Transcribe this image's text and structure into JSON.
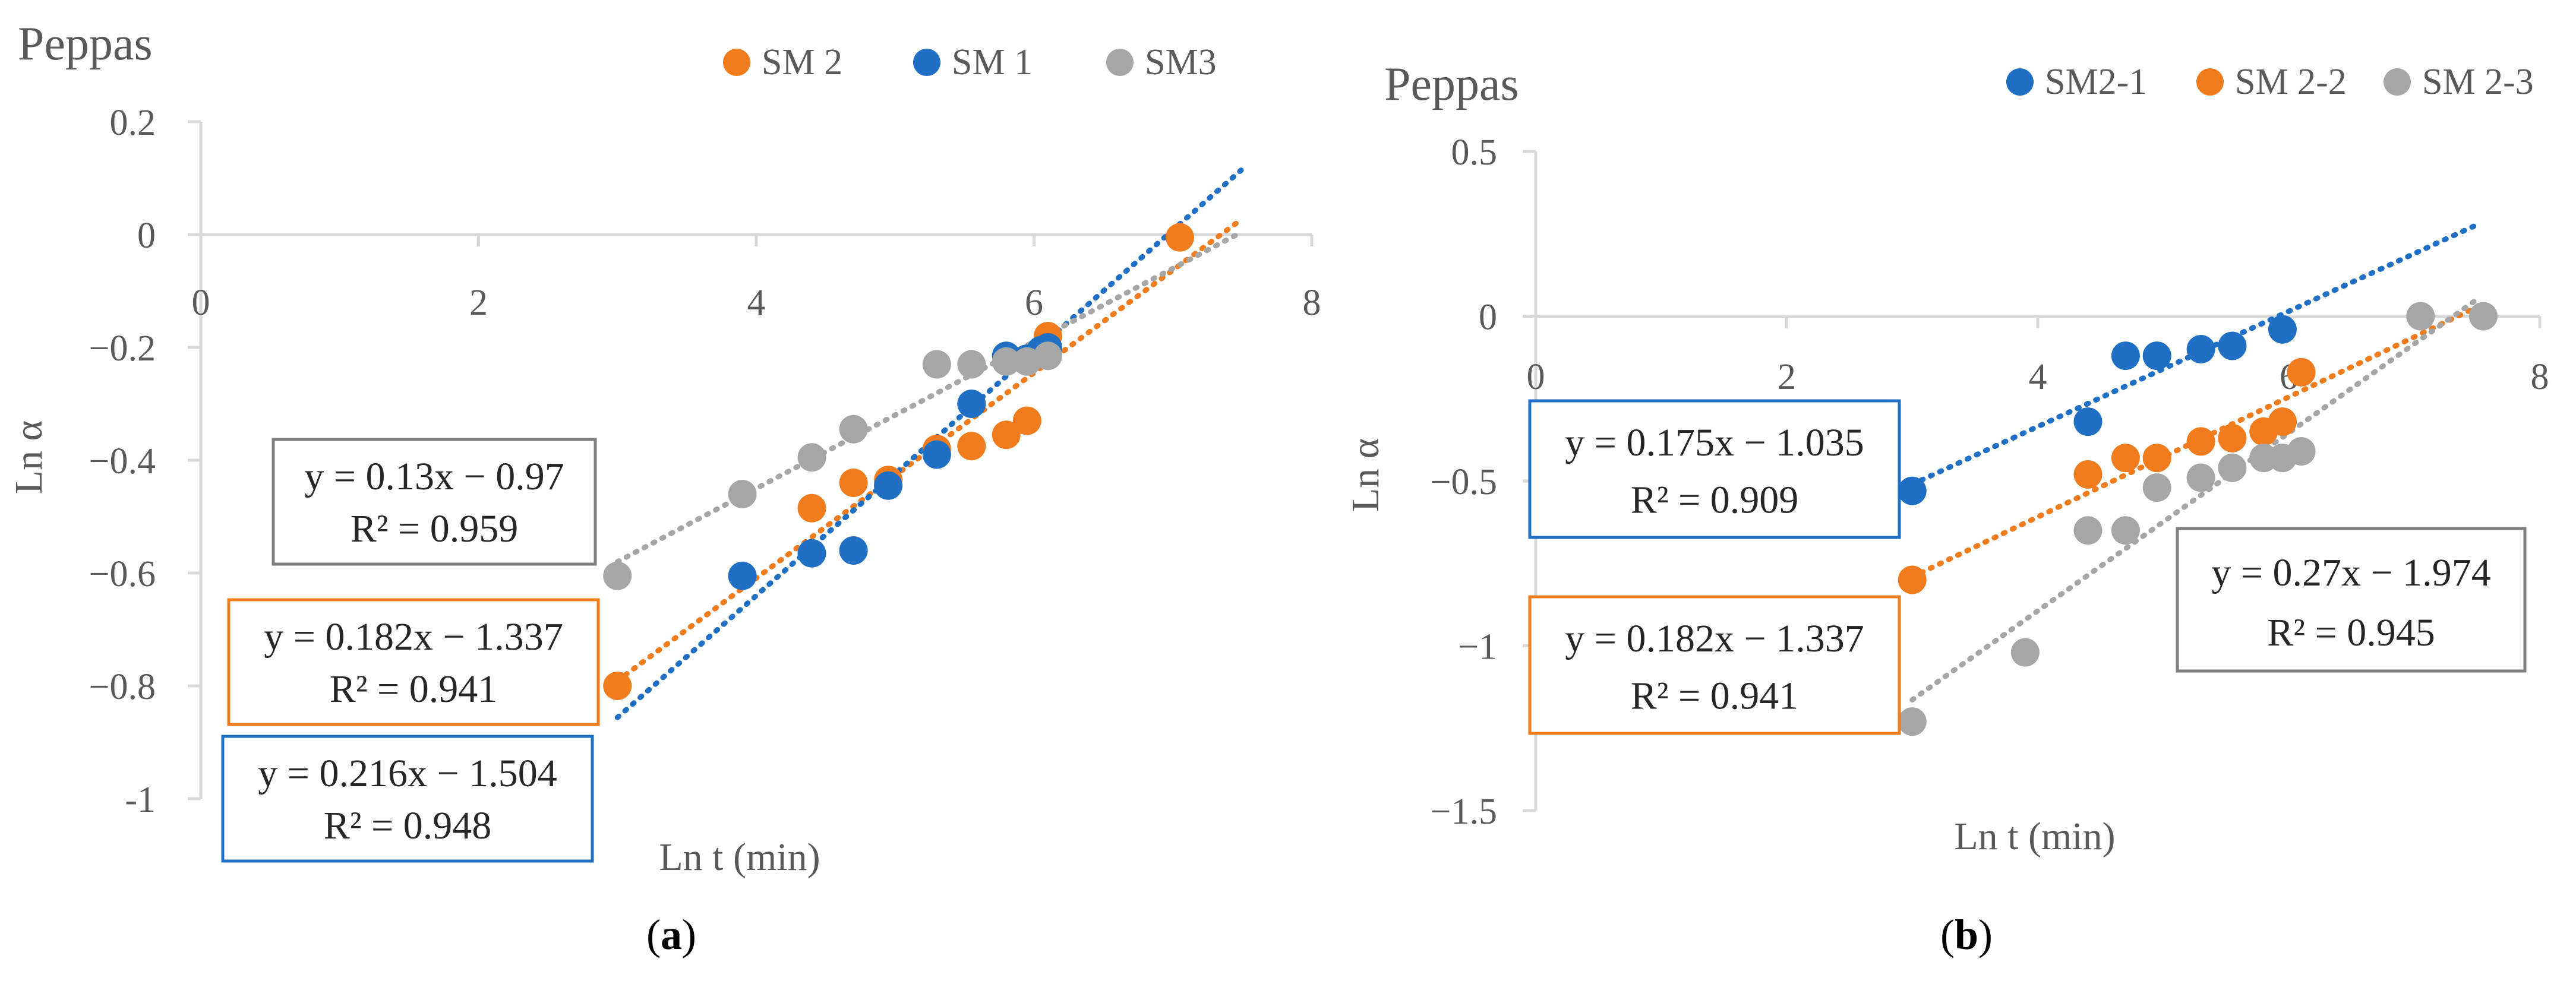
{
  "colors": {
    "blue": "#1f6fc5",
    "orange": "#f07c1e",
    "gray": "#a6a6a6",
    "axis": "#d9d9d9",
    "eqgray": "#7f7f7f"
  },
  "chart_data": [
    {
      "id": "a",
      "type": "scatter",
      "title": "Peppas",
      "caption": "(a)",
      "xlabel": "Ln t (min)",
      "ylabel": "Ln α",
      "xlim": [
        0,
        8
      ],
      "ylim": [
        -1,
        0.2
      ],
      "xticks": [
        0,
        2,
        4,
        6,
        8
      ],
      "xtick_labels": [
        "0",
        "2",
        "4",
        "6",
        "8"
      ],
      "yticks": [
        0.2,
        0,
        -0.2,
        -0.4,
        -0.6,
        -0.8,
        -1
      ],
      "ytick_labels": [
        "0.2",
        "0",
        "−0.2",
        "−0.4",
        "−0.6",
        "−0.8",
        "-1"
      ],
      "grid": false,
      "legend": "top",
      "series": [
        {
          "name": "SM 2",
          "color": "orange",
          "x": [
            3.0,
            4.4,
            4.7,
            4.95,
            5.3,
            5.55,
            5.8,
            5.95,
            6.1,
            7.05
          ],
          "y": [
            -0.8,
            -0.485,
            -0.44,
            -0.435,
            -0.38,
            -0.375,
            -0.355,
            -0.33,
            -0.18,
            -0.005
          ],
          "trendline": {
            "slope": 0.182,
            "intercept": -1.337,
            "x_range": [
              3.0,
              7.5
            ]
          },
          "equation": "y = 0.182x − 1.337",
          "r2": "R² = 0.941"
        },
        {
          "name": "SM 1",
          "color": "blue",
          "x": [
            3.9,
            4.4,
            4.7,
            4.95,
            5.3,
            5.55,
            5.8,
            5.95,
            6.05,
            6.1
          ],
          "y": [
            -0.605,
            -0.565,
            -0.56,
            -0.445,
            -0.39,
            -0.3,
            -0.215,
            -0.22,
            -0.205,
            -0.2
          ],
          "trendline": {
            "slope": 0.216,
            "intercept": -1.504,
            "x_range": [
              3.0,
              7.5
            ]
          },
          "equation": "y = 0.216x − 1.504",
          "r2": "R² = 0.948"
        },
        {
          "name": "SM3",
          "color": "gray",
          "x": [
            3.0,
            3.9,
            4.4,
            4.7,
            5.3,
            5.55,
            5.8,
            5.95,
            6.1
          ],
          "y": [
            -0.605,
            -0.46,
            -0.395,
            -0.345,
            -0.23,
            -0.23,
            -0.225,
            -0.225,
            -0.215
          ],
          "trendline": {
            "slope": 0.13,
            "intercept": -0.97,
            "x_range": [
              3.0,
              7.5
            ]
          },
          "equation": "y = 0.13x − 0.97",
          "r2": "R² = 0.959"
        }
      ]
    },
    {
      "id": "b",
      "type": "scatter",
      "title": "Peppas",
      "caption": "(b)",
      "xlabel": "Ln t (min)",
      "ylabel": "Ln α",
      "xlim": [
        0,
        8
      ],
      "ylim": [
        -1.5,
        0.5
      ],
      "xticks": [
        0,
        2,
        4,
        6,
        8
      ],
      "xtick_labels": [
        "0",
        "2",
        "4",
        "6",
        "8"
      ],
      "yticks": [
        0.5,
        0,
        -0.5,
        -1,
        -1.5
      ],
      "ytick_labels": [
        "0.5",
        "0",
        "−0.5",
        "−1",
        "−1.5"
      ],
      "grid": false,
      "legend": "top",
      "series": [
        {
          "name": "SM2-1",
          "color": "blue",
          "x": [
            3.0,
            4.4,
            4.7,
            4.95,
            5.3,
            5.55,
            5.95
          ],
          "y": [
            -0.53,
            -0.32,
            -0.12,
            -0.12,
            -0.1,
            -0.09,
            -0.04
          ],
          "trendline": {
            "slope": 0.175,
            "intercept": -1.035,
            "x_range": [
              3.0,
              7.5
            ]
          },
          "equation": "y = 0.175x − 1.035",
          "r2": "R² = 0.909"
        },
        {
          "name": "SM 2-2",
          "color": "orange",
          "x": [
            3.0,
            4.4,
            4.7,
            4.95,
            5.3,
            5.55,
            5.8,
            5.95,
            6.1
          ],
          "y": [
            -0.8,
            -0.48,
            -0.43,
            -0.43,
            -0.38,
            -0.37,
            -0.35,
            -0.32,
            -0.17
          ],
          "trendline": {
            "slope": 0.182,
            "intercept": -1.337,
            "x_range": [
              3.0,
              7.5
            ]
          },
          "equation": "y = 0.182x − 1.337",
          "r2": "R² = 0.941"
        },
        {
          "name": "SM 2-3",
          "color": "gray",
          "x": [
            3.0,
            3.9,
            4.4,
            4.7,
            4.95,
            5.3,
            5.55,
            5.8,
            5.95,
            6.1,
            7.05,
            7.55
          ],
          "y": [
            -1.23,
            -1.02,
            -0.65,
            -0.65,
            -0.52,
            -0.49,
            -0.46,
            -0.43,
            -0.43,
            -0.41,
            0.0,
            0.0
          ],
          "trendline": {
            "slope": 0.27,
            "intercept": -1.974,
            "x_range": [
              3.0,
              7.5
            ]
          },
          "equation": "y = 0.27x − 1.974",
          "r2": "R² = 0.945"
        }
      ]
    }
  ]
}
